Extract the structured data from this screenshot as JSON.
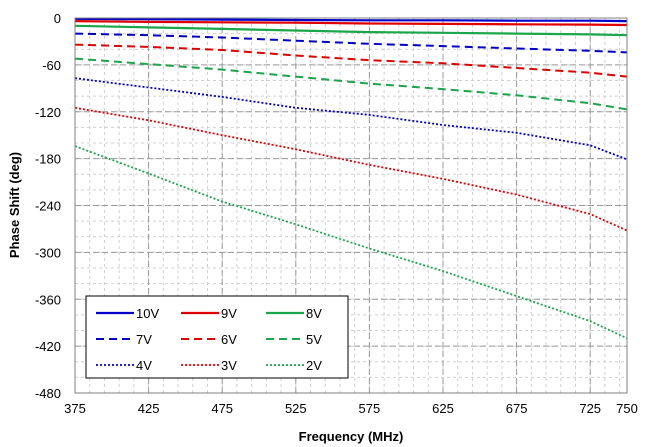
{
  "chart_data": {
    "type": "line",
    "title": "",
    "xlabel": "Frequency (MHz)",
    "ylabel": "Phase Shift (deg)",
    "xlim": [
      375,
      750
    ],
    "ylim": [
      -480,
      0
    ],
    "x_ticks": [
      "375",
      "425",
      "475",
      "525",
      "575",
      "625",
      "675",
      "725",
      "750"
    ],
    "y_ticks": [
      "0",
      "-60",
      "-120",
      "-180",
      "-240",
      "-300",
      "-360",
      "-420",
      "-480"
    ],
    "grid": true,
    "legend_position": "bottom-left",
    "x": [
      375,
      425,
      475,
      525,
      575,
      625,
      675,
      725,
      750
    ],
    "series": [
      {
        "name": "10V",
        "color": "#0000CC",
        "style": "solid",
        "values": [
          -1,
          -1.5,
          -2,
          -2.5,
          -3,
          -3,
          -3.5,
          -3.5,
          -4
        ]
      },
      {
        "name": "9V",
        "color": "#E00000",
        "style": "solid",
        "values": [
          -4,
          -5,
          -5.5,
          -6,
          -7,
          -7.5,
          -8,
          -8.5,
          -9
        ]
      },
      {
        "name": "8V",
        "color": "#1AA64A",
        "style": "solid",
        "values": [
          -10,
          -12,
          -14,
          -16,
          -18,
          -19,
          -20,
          -21,
          -22
        ]
      },
      {
        "name": "7V",
        "color": "#0000CC",
        "style": "dashed",
        "values": [
          -20,
          -22,
          -25,
          -29,
          -33,
          -36,
          -39,
          -42,
          -44
        ]
      },
      {
        "name": "6V",
        "color": "#E00000",
        "style": "dashed",
        "values": [
          -34,
          -37,
          -41,
          -48,
          -54,
          -58,
          -64,
          -70,
          -75
        ]
      },
      {
        "name": "5V",
        "color": "#1AA64A",
        "style": "dashed",
        "values": [
          -52,
          -59,
          -66,
          -75,
          -84,
          -91,
          -99,
          -109,
          -117
        ]
      },
      {
        "name": "4V",
        "color": "#0000CC",
        "style": "dotted",
        "values": [
          -77,
          -89,
          -101,
          -115,
          -124,
          -137,
          -147,
          -163,
          -181
        ]
      },
      {
        "name": "3V",
        "color": "#E00000",
        "style": "dotted",
        "values": [
          -115,
          -131,
          -150,
          -168,
          -188,
          -206,
          -226,
          -251,
          -272
        ]
      },
      {
        "name": "2V",
        "color": "#1AA64A",
        "style": "dotted",
        "values": [
          -164,
          -199,
          -235,
          -264,
          -295,
          -324,
          -356,
          -388,
          -410
        ]
      }
    ]
  }
}
